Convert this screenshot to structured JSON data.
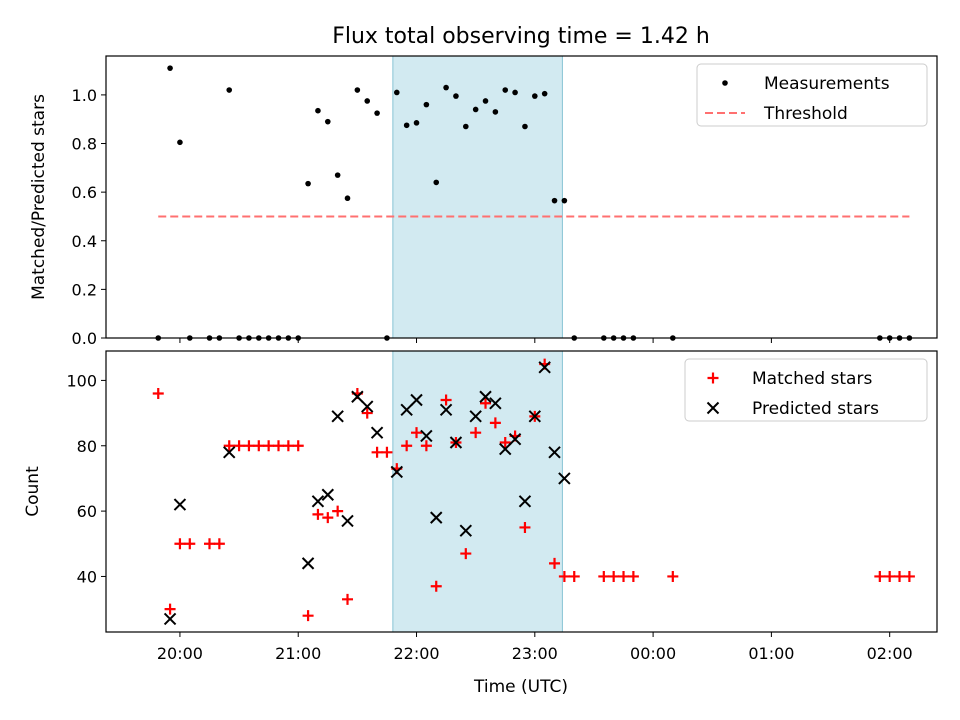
{
  "chart_data": [
    {
      "type": "scatter",
      "title": "Flux total observing time = 1.42 h",
      "xlabel": "",
      "ylabel": "Matched/Predicted stars",
      "ylim": [
        0,
        1.16
      ],
      "yticks": [
        "0.0",
        "0.2",
        "0.4",
        "0.6",
        "0.8",
        "1.0"
      ],
      "grid": false,
      "legend_position": "top-right",
      "highlight_span": {
        "from": "21:48",
        "to": "23:14",
        "color": "#add8e6"
      },
      "series": [
        {
          "name": "Measurements",
          "style": "dot",
          "color": "#000000",
          "points": [
            [
              "19:49",
              0.0
            ],
            [
              "19:55",
              1.11
            ],
            [
              "20:00",
              0.805
            ],
            [
              "20:05",
              0.0
            ],
            [
              "20:15",
              0.0
            ],
            [
              "20:20",
              0.0
            ],
            [
              "20:25",
              1.02
            ],
            [
              "20:30",
              0.0
            ],
            [
              "20:35",
              0.0
            ],
            [
              "20:40",
              0.0
            ],
            [
              "20:45",
              0.0
            ],
            [
              "20:50",
              0.0
            ],
            [
              "20:55",
              0.0
            ],
            [
              "21:00",
              0.0
            ],
            [
              "21:05",
              0.635
            ],
            [
              "21:10",
              0.935
            ],
            [
              "21:15",
              0.89
            ],
            [
              "21:20",
              0.67
            ],
            [
              "21:25",
              0.575
            ],
            [
              "21:30",
              1.02
            ],
            [
              "21:35",
              0.975
            ],
            [
              "21:40",
              0.925
            ],
            [
              "21:45",
              0.0
            ],
            [
              "21:50",
              1.01
            ],
            [
              "21:55",
              0.875
            ],
            [
              "22:00",
              0.885
            ],
            [
              "22:05",
              0.96
            ],
            [
              "22:10",
              0.64
            ],
            [
              "22:15",
              1.03
            ],
            [
              "22:20",
              0.995
            ],
            [
              "22:25",
              0.87
            ],
            [
              "22:30",
              0.94
            ],
            [
              "22:35",
              0.975
            ],
            [
              "22:40",
              0.93
            ],
            [
              "22:45",
              1.02
            ],
            [
              "22:50",
              1.01
            ],
            [
              "22:55",
              0.87
            ],
            [
              "23:00",
              0.995
            ],
            [
              "23:05",
              1.005
            ],
            [
              "23:10",
              0.565
            ],
            [
              "23:15",
              0.565
            ],
            [
              "23:20",
              0.0
            ],
            [
              "23:35",
              0.0
            ],
            [
              "23:40",
              0.0
            ],
            [
              "23:45",
              0.0
            ],
            [
              "23:50",
              0.0
            ],
            [
              "00:10",
              0.0
            ],
            [
              "01:55",
              0.0
            ],
            [
              "02:00",
              0.0
            ],
            [
              "02:05",
              0.0
            ],
            [
              "02:10",
              0.0
            ]
          ]
        },
        {
          "name": "Threshold",
          "style": "dashed-line",
          "color": "#ff7070",
          "points": [
            [
              "19:49",
              0.5
            ],
            [
              "02:10",
              0.5
            ]
          ]
        }
      ]
    },
    {
      "type": "scatter",
      "title": "",
      "xlabel": "Time (UTC)",
      "ylabel": "Count",
      "ylim": [
        23,
        109
      ],
      "yticks": [
        "40",
        "60",
        "80",
        "100"
      ],
      "xticks": [
        "20:00",
        "21:00",
        "22:00",
        "23:00",
        "00:00",
        "01:00",
        "02:00"
      ],
      "grid": false,
      "legend_position": "top-right",
      "highlight_span": {
        "from": "21:48",
        "to": "23:14",
        "color": "#add8e6"
      },
      "series": [
        {
          "name": "Matched stars",
          "style": "plus",
          "color": "#ff0000",
          "points": [
            [
              "19:49",
              96
            ],
            [
              "19:55",
              30
            ],
            [
              "20:00",
              50
            ],
            [
              "20:05",
              50
            ],
            [
              "20:15",
              50
            ],
            [
              "20:20",
              50
            ],
            [
              "20:25",
              80
            ],
            [
              "20:30",
              80
            ],
            [
              "20:35",
              80
            ],
            [
              "20:40",
              80
            ],
            [
              "20:45",
              80
            ],
            [
              "20:50",
              80
            ],
            [
              "20:55",
              80
            ],
            [
              "21:00",
              80
            ],
            [
              "21:05",
              28
            ],
            [
              "21:10",
              59
            ],
            [
              "21:15",
              58
            ],
            [
              "21:20",
              60
            ],
            [
              "21:25",
              33
            ],
            [
              "21:30",
              96
            ],
            [
              "21:35",
              90
            ],
            [
              "21:40",
              78
            ],
            [
              "21:45",
              78
            ],
            [
              "21:50",
              73
            ],
            [
              "21:55",
              80
            ],
            [
              "22:00",
              84
            ],
            [
              "22:05",
              80
            ],
            [
              "22:10",
              37
            ],
            [
              "22:15",
              94
            ],
            [
              "22:20",
              81
            ],
            [
              "22:25",
              47
            ],
            [
              "22:30",
              84
            ],
            [
              "22:35",
              93
            ],
            [
              "22:40",
              87
            ],
            [
              "22:45",
              81
            ],
            [
              "22:50",
              83
            ],
            [
              "22:55",
              55
            ],
            [
              "23:00",
              89
            ],
            [
              "23:05",
              105
            ],
            [
              "23:10",
              44
            ],
            [
              "23:15",
              40
            ],
            [
              "23:20",
              40
            ],
            [
              "23:35",
              40
            ],
            [
              "23:40",
              40
            ],
            [
              "23:45",
              40
            ],
            [
              "23:50",
              40
            ],
            [
              "00:10",
              40
            ],
            [
              "01:55",
              40
            ],
            [
              "02:00",
              40
            ],
            [
              "02:05",
              40
            ],
            [
              "02:10",
              40
            ]
          ]
        },
        {
          "name": "Predicted stars",
          "style": "x",
          "color": "#000000",
          "points": [
            [
              "19:55",
              27
            ],
            [
              "20:00",
              62
            ],
            [
              "20:25",
              78
            ],
            [
              "21:05",
              44
            ],
            [
              "21:10",
              63
            ],
            [
              "21:15",
              65
            ],
            [
              "21:20",
              89
            ],
            [
              "21:25",
              57
            ],
            [
              "21:30",
              95
            ],
            [
              "21:35",
              92
            ],
            [
              "21:40",
              84
            ],
            [
              "21:50",
              72
            ],
            [
              "21:55",
              91
            ],
            [
              "22:00",
              94
            ],
            [
              "22:05",
              83
            ],
            [
              "22:10",
              58
            ],
            [
              "22:15",
              91
            ],
            [
              "22:20",
              81
            ],
            [
              "22:25",
              54
            ],
            [
              "22:30",
              89
            ],
            [
              "22:35",
              95
            ],
            [
              "22:40",
              93
            ],
            [
              "22:45",
              79
            ],
            [
              "22:50",
              82
            ],
            [
              "22:55",
              63
            ],
            [
              "23:00",
              89
            ],
            [
              "23:05",
              104
            ],
            [
              "23:10",
              78
            ],
            [
              "23:15",
              70
            ]
          ]
        }
      ]
    }
  ]
}
